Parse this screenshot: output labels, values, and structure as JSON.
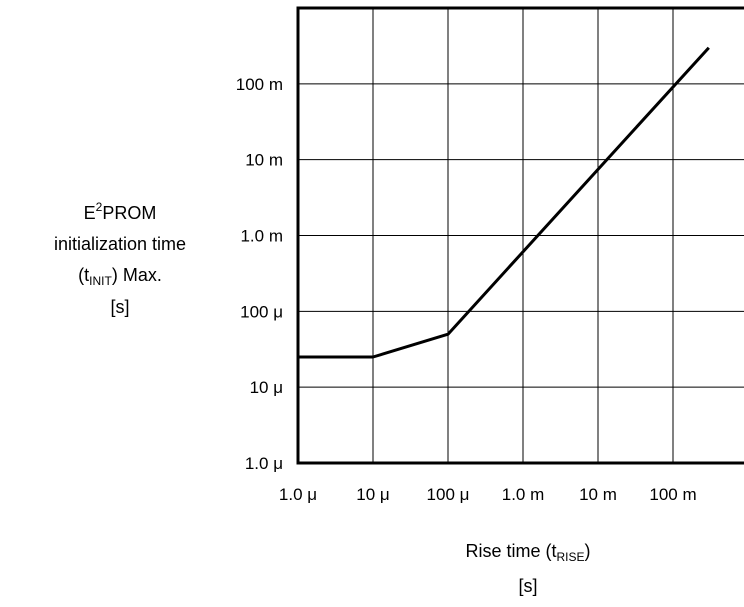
{
  "chart_data": {
    "type": "line",
    "xscale": "log",
    "yscale": "log",
    "xlim": [
      1e-06,
      1
    ],
    "ylim": [
      1e-06,
      1
    ],
    "grid": true,
    "x_tick_values": [
      1e-06,
      1e-05,
      0.0001,
      0.001,
      0.01,
      0.1
    ],
    "x_tick_labels": [
      "1.0 μ",
      "10 μ",
      "100 μ",
      "1.0 m",
      "10 m",
      "100 m"
    ],
    "y_tick_values": [
      1e-06,
      1e-05,
      0.0001,
      0.001,
      0.01,
      0.1
    ],
    "y_tick_labels": [
      "1.0 μ",
      "10 μ",
      "100 μ",
      "1.0 m",
      "10 m",
      "100 m"
    ],
    "ylabel_lines": {
      "line1_main": "E",
      "line1_sup": "2",
      "line1_rest": "PROM",
      "line2": "initialization time",
      "line3_pre": "(t",
      "line3_sub": "INIT",
      "line3_post": ") Max.",
      "line4": "[s]"
    },
    "xlabel_lines": {
      "line1_pre": "Rise time (t",
      "line1_sub": "RISE",
      "line1_post": ")",
      "line2": "[s]"
    },
    "series": [
      {
        "x": [
          1e-06,
          1e-05,
          0.0001,
          0.3
        ],
        "y": [
          2.5e-05,
          2.5e-05,
          5e-05,
          0.3
        ]
      }
    ],
    "line_color": "#000000"
  }
}
